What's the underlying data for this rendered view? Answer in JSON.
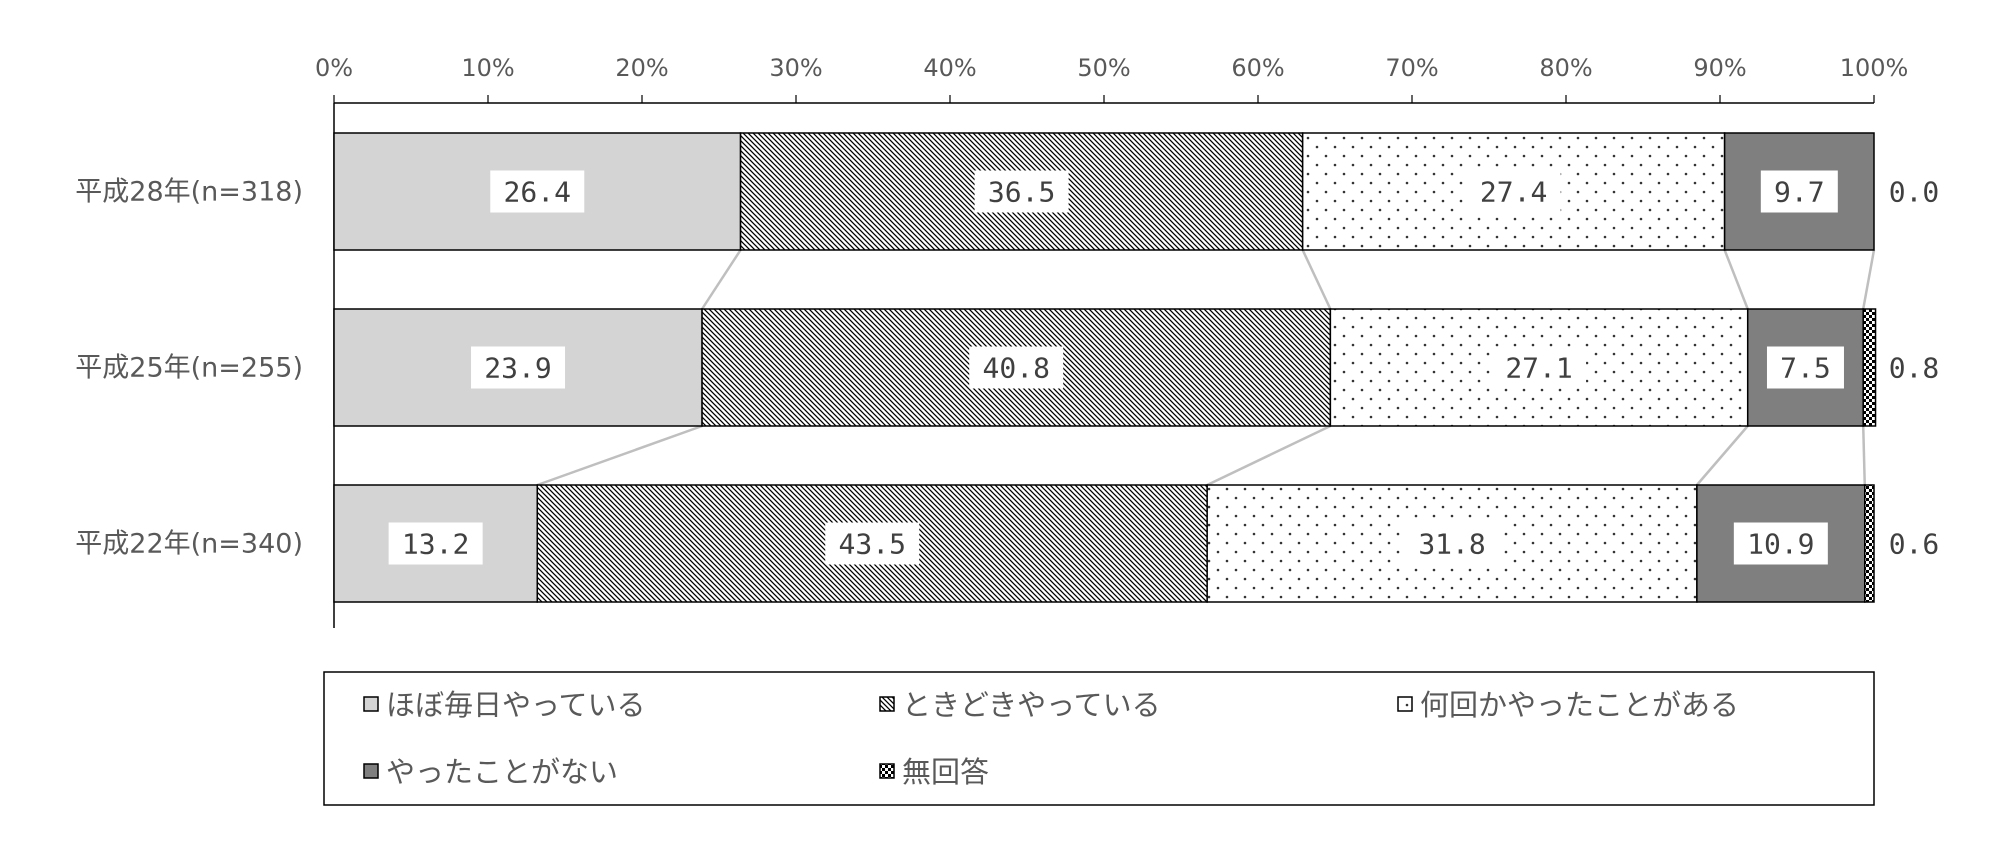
{
  "chart_data": {
    "type": "bar",
    "orientation": "horizontal",
    "stacked": "100%",
    "categories": [
      "平成28年(n=318)",
      "平成25年(n=255)",
      "平成22年(n=340)"
    ],
    "xticks": [
      "0%",
      "10%",
      "20%",
      "30%",
      "40%",
      "50%",
      "60%",
      "70%",
      "80%",
      "90%",
      "100%"
    ],
    "xlim": [
      0,
      100
    ],
    "series": [
      {
        "name": "ほぼ毎日やっている",
        "values": [
          26.4,
          23.9,
          13.2
        ],
        "labels": [
          "26.4",
          "23.9",
          "13.2"
        ],
        "fill": "#d4d4d4",
        "pattern": "solid"
      },
      {
        "name": "ときどきやっている",
        "values": [
          36.5,
          40.8,
          43.5
        ],
        "labels": [
          "36.5",
          "40.8",
          "43.5"
        ],
        "fill": "#ffffff",
        "pattern": "diagonal"
      },
      {
        "name": "何回かやったことがある",
        "values": [
          27.4,
          27.1,
          31.8
        ],
        "labels": [
          "27.4",
          "27.1",
          "31.8"
        ],
        "fill": "#ffffff",
        "pattern": "dots"
      },
      {
        "name": "やったことがない",
        "values": [
          9.7,
          7.5,
          10.9
        ],
        "labels": [
          "9.7",
          "7.5",
          "10.9"
        ],
        "fill": "#7f7f7f",
        "pattern": "solid"
      },
      {
        "name": "無回答",
        "values": [
          0.0,
          0.8,
          0.6
        ],
        "labels": [
          "0.0",
          "0.8",
          "0.6"
        ],
        "fill": "#000000",
        "pattern": "checker"
      }
    ],
    "legend_position": "bottom",
    "grid": false,
    "series_lines": true
  }
}
